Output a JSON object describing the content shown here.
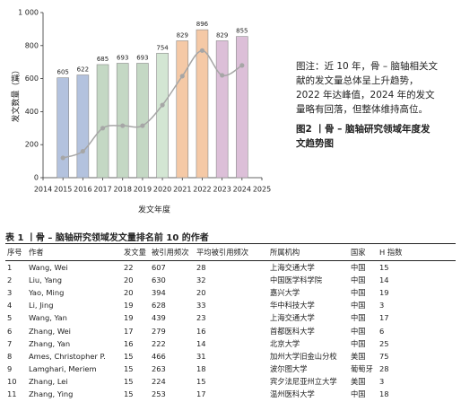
{
  "chart_data": {
    "type": "bar",
    "xlabel": "发文年度",
    "ylabel": "发文数量（篇）",
    "x": [
      2015,
      2016,
      2017,
      2018,
      2019,
      2020,
      2021,
      2022,
      2023,
      2024
    ],
    "series": [
      {
        "type": "bar",
        "values": [
          605,
          622,
          685,
          693,
          693,
          754,
          829,
          896,
          829,
          855
        ],
        "colors": [
          "#b3c2de",
          "#b3c2de",
          "#c4d8c4",
          "#c4d8c4",
          "#c4d8c4",
          "#d3e6d3",
          "#f5c9a6",
          "#f5c9a6",
          "#dcbfd8",
          "#dcbfd8"
        ]
      },
      {
        "type": "line",
        "color": "#a6a6a6",
        "values": [
          120,
          160,
          300,
          315,
          315,
          440,
          615,
          770,
          620,
          680
        ]
      }
    ],
    "xlim": [
      2014,
      2025
    ],
    "xticks": [
      2014,
      2015,
      2016,
      2017,
      2018,
      2019,
      2020,
      2021,
      2022,
      2023,
      2024,
      2025
    ],
    "ylim": [
      0,
      1000
    ],
    "yticks": [
      0,
      200,
      400,
      600,
      800,
      {
        "value": 1000,
        "label": "1 000"
      }
    ]
  },
  "caption": {
    "note": "图注：近 10 年，骨 – 脑轴相关文献的发文量总体呈上升趋势，2022 年达峰值，2024 年的发文量略有回落，但整体维持高位。",
    "figure_title": "图2 丨骨 – 脑轴研究领域年度发文趋势图"
  },
  "table": {
    "title": "表 1 丨骨 – 脑轴研究领域发文量排名前 10 的作者",
    "header": [
      "序号",
      "作者",
      "发文量",
      "被引用频次",
      "平均被引用频次",
      "所属机构",
      "国家",
      "H 指数"
    ],
    "rows": [
      [
        1,
        "Wang, Wei",
        22,
        607,
        28,
        "上海交通大学",
        "中国",
        15
      ],
      [
        2,
        "Liu, Yang",
        20,
        630,
        32,
        "中国医学科学院",
        "中国",
        14
      ],
      [
        3,
        "Yao, Ming",
        20,
        394,
        20,
        "嘉兴大学",
        "中国",
        19
      ],
      [
        4,
        "Li, Jing",
        19,
        628,
        33,
        "华中科技大学",
        "中国",
        3
      ],
      [
        5,
        "Wang, Yan",
        19,
        439,
        23,
        "上海交通大学",
        "中国",
        17
      ],
      [
        6,
        "Zhang, Wei",
        17,
        279,
        16,
        "首都医科大学",
        "中国",
        6
      ],
      [
        7,
        "Zhang, Yan",
        16,
        222,
        14,
        "北京大学",
        "中国",
        25
      ],
      [
        8,
        "Ames, Christopher P.",
        15,
        466,
        31,
        "加州大学旧金山分校",
        "美国",
        75
      ],
      [
        9,
        "Lamghari, Meriem",
        15,
        263,
        18,
        "波尔图大学",
        "葡萄牙",
        28
      ],
      [
        10,
        "Zhang, Lei",
        15,
        224,
        15,
        "宾夕法尼亚州立大学",
        "美国",
        3
      ],
      [
        11,
        "Zhang, Ying",
        15,
        253,
        17,
        "温州医科大学",
        "中国",
        18
      ]
    ]
  }
}
